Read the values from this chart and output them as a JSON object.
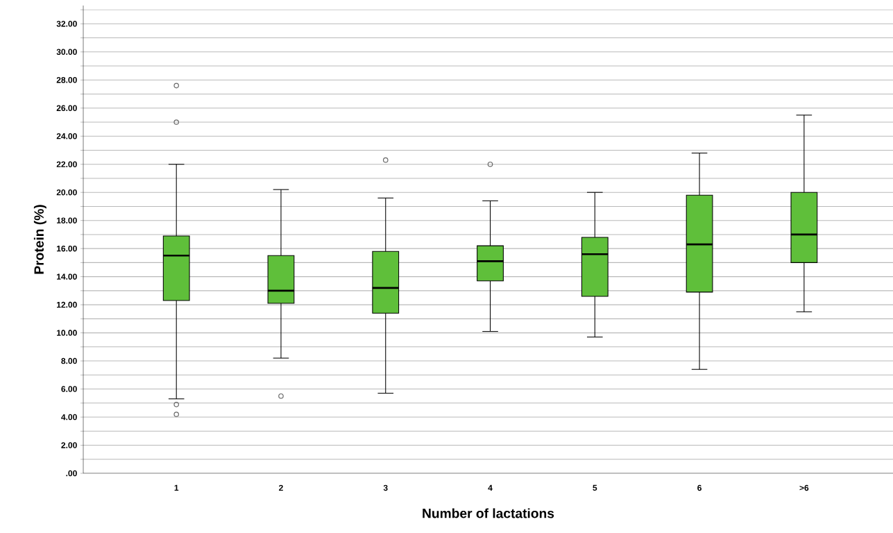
{
  "chart_data": {
    "type": "box",
    "xlabel": "Number of lactations",
    "ylabel": "Protein (%)",
    "categories": [
      "1",
      "2",
      "3",
      "4",
      "5",
      "6",
      ">6"
    ],
    "color": "#5fbf3a",
    "boxes": [
      {
        "low": 5.3,
        "q1": 12.3,
        "median": 15.5,
        "q3": 16.9,
        "high": 22.0,
        "outliers": [
          27.6,
          25.0,
          4.9,
          4.2
        ]
      },
      {
        "low": 8.2,
        "q1": 12.1,
        "median": 13.0,
        "q3": 15.5,
        "high": 20.2,
        "outliers": [
          5.5
        ]
      },
      {
        "low": 5.7,
        "q1": 11.4,
        "median": 13.2,
        "q3": 15.8,
        "high": 19.6,
        "outliers": [
          22.3
        ]
      },
      {
        "low": 10.1,
        "q1": 13.7,
        "median": 15.1,
        "q3": 16.2,
        "high": 19.4,
        "outliers": [
          22.0
        ]
      },
      {
        "low": 9.7,
        "q1": 12.6,
        "median": 15.6,
        "q3": 16.8,
        "high": 20.0
      },
      {
        "low": 7.4,
        "q1": 12.9,
        "median": 16.3,
        "q3": 19.8,
        "high": 22.8
      },
      {
        "low": 11.5,
        "q1": 15.0,
        "median": 17.0,
        "q3": 20.0,
        "high": 25.5
      }
    ],
    "ylim": [
      0,
      33.3
    ],
    "yticks": [
      {
        "value": 0,
        "label": ".00"
      },
      {
        "value": 1,
        "label": null
      },
      {
        "value": 2,
        "label": "2.00"
      },
      {
        "value": 3,
        "label": null
      },
      {
        "value": 4,
        "label": "4.00"
      },
      {
        "value": 5,
        "label": null
      },
      {
        "value": 6,
        "label": "6.00"
      },
      {
        "value": 7,
        "label": null
      },
      {
        "value": 8,
        "label": "8.00"
      },
      {
        "value": 9,
        "label": null
      },
      {
        "value": 10,
        "label": "10.00"
      },
      {
        "value": 11,
        "label": null
      },
      {
        "value": 12,
        "label": "12.00"
      },
      {
        "value": 13,
        "label": null
      },
      {
        "value": 14,
        "label": "14.00"
      },
      {
        "value": 15,
        "label": null
      },
      {
        "value": 16,
        "label": "16.00"
      },
      {
        "value": 17,
        "label": null
      },
      {
        "value": 18,
        "label": "18.00"
      },
      {
        "value": 19,
        "label": null
      },
      {
        "value": 20,
        "label": "20.00"
      },
      {
        "value": 21,
        "label": null
      },
      {
        "value": 22,
        "label": "22.00"
      },
      {
        "value": 23,
        "label": null
      },
      {
        "value": 24,
        "label": "24.00"
      },
      {
        "value": 25,
        "label": null
      },
      {
        "value": 26,
        "label": "26.00"
      },
      {
        "value": 27,
        "label": null
      },
      {
        "value": 28,
        "label": "28.00"
      },
      {
        "value": 29,
        "label": null
      },
      {
        "value": 30,
        "label": "30.00"
      },
      {
        "value": 31,
        "label": null
      },
      {
        "value": 32,
        "label": "32.00"
      },
      {
        "value": 33,
        "label": null
      }
    ],
    "grid": "y",
    "marker": "circle"
  }
}
